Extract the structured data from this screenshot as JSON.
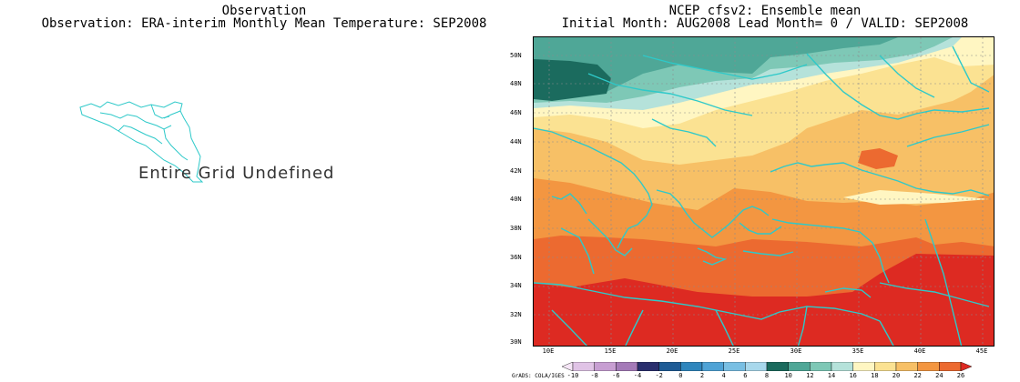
{
  "left_panel": {
    "title": "Observation",
    "subtitle": "Observation: ERA-interim Monthly Mean Temperature: SEP2008",
    "message": "Entire Grid Undefined"
  },
  "right_panel": {
    "title": "NCEP cfsv2: Ensemble mean",
    "subtitle": "Initial Month: AUG2008  Lead Month= 0 / VALID: SEP2008"
  },
  "map": {
    "lat_labels": [
      "50N",
      "48N",
      "46N",
      "44N",
      "42N",
      "40N",
      "38N",
      "36N",
      "34N",
      "32N",
      "30N"
    ],
    "lon_labels": [
      "10E",
      "15E",
      "20E",
      "25E",
      "30E",
      "35E",
      "40E",
      "45E"
    ],
    "coastline_color": "#2ec9c9",
    "gridline_color": "#8c8c8c"
  },
  "colorbar": {
    "labels": [
      "-10",
      "-8",
      "-6",
      "-4",
      "-2",
      "0",
      "2",
      "4",
      "6",
      "8",
      "10",
      "12",
      "14",
      "16",
      "18",
      "20",
      "22",
      "24",
      "26"
    ],
    "colors": [
      "#f6e6f7",
      "#e0c3e6",
      "#c79ed2",
      "#a47ab8",
      "#2a2f6e",
      "#1f5c96",
      "#2f86bd",
      "#4fa3d6",
      "#79bfe3",
      "#a8d8ec",
      "#1b6b5e",
      "#4fa797",
      "#7ec8b6",
      "#b5e2da",
      "#fff6c2",
      "#fbe292",
      "#f7c066",
      "#f39641",
      "#ec6a30",
      "#dd2a22"
    ]
  },
  "footer": {
    "credit": "GrADS: COLA/IGES"
  }
}
